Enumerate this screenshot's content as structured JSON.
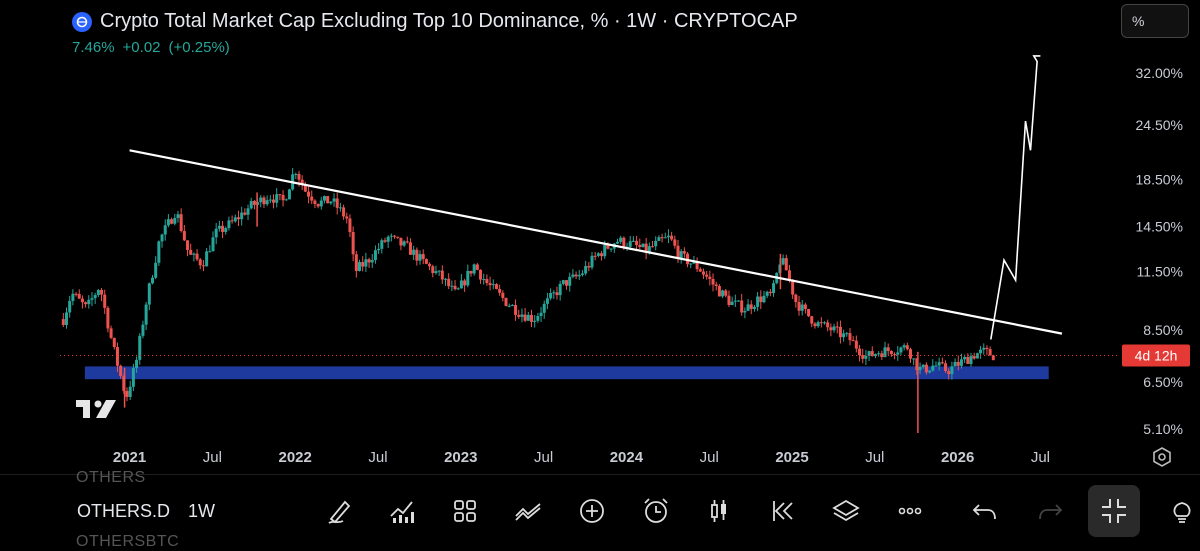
{
  "header": {
    "title": "Crypto Total Market Cap Excluding Top 10 Dominance, % · 1W · CRYPTOCAP",
    "last_value": "7.46%",
    "change_abs": "+0.02",
    "change_pct": "(+0.25%)"
  },
  "unit_label": "%",
  "logo_text": "TV",
  "colors": {
    "background": "#000000",
    "up": "#26a69a",
    "down": "#ef5350",
    "support_zone": "#1e3a9e",
    "trendline": "#ffffff",
    "countdown_badge": "#e53935",
    "axis_text": "#c9ccd4"
  },
  "countdown_label": "4d 12h",
  "toolbar": {
    "ghost_top": "OTHERS",
    "symbol": "OTHERS.D",
    "interval": "1W",
    "ghost_bottom": "OTHERSBTC",
    "icons": [
      "brush-icon",
      "indicators-icon",
      "grid-layout-icon",
      "compare-icon",
      "add-icon",
      "alert-clock-icon",
      "candle-type-icon",
      "replay-icon",
      "layers-icon",
      "more-icon",
      "undo-icon",
      "redo-icon",
      "exit-fullscreen-icon",
      "lightbulb-icon"
    ]
  },
  "chart_data": {
    "type": "candlestick",
    "scale": "log",
    "y_unit": "%",
    "x_labels": [
      "2021",
      "Jul",
      "2022",
      "Jul",
      "2023",
      "Jul",
      "2024",
      "Jul",
      "2025",
      "Jul",
      "2026",
      "Jul"
    ],
    "x_label_bold": [
      "2021",
      "2022",
      "2023",
      "2024",
      "2025",
      "2026"
    ],
    "x_label_dates": [
      2021.0,
      2021.5,
      2022.0,
      2022.5,
      2023.0,
      2023.5,
      2024.0,
      2024.5,
      2025.0,
      2025.5,
      2026.0,
      2026.5
    ],
    "y_ticks": [
      5.1,
      6.5,
      8.5,
      11.5,
      14.5,
      18.5,
      24.5,
      32.0
    ],
    "y_tick_labels": [
      "5.10%",
      "6.50%",
      "8.50%",
      "11.50%",
      "14.50%",
      "18.50%",
      "24.50%",
      "32.00%"
    ],
    "current_price": 7.46,
    "x_range": [
      2020.58,
      2026.92
    ],
    "y_range": [
      4.7,
      40.0
    ],
    "price_path": [
      [
        2020.6,
        9.0
      ],
      [
        2020.65,
        10.3
      ],
      [
        2020.74,
        9.5
      ],
      [
        2020.82,
        10.7
      ],
      [
        2020.9,
        7.8
      ],
      [
        2020.98,
        6.0
      ],
      [
        2021.04,
        7.2
      ],
      [
        2021.1,
        9.8
      ],
      [
        2021.18,
        13.5
      ],
      [
        2021.28,
        15.8
      ],
      [
        2021.36,
        12.5
      ],
      [
        2021.44,
        12.0
      ],
      [
        2021.52,
        14.0
      ],
      [
        2021.62,
        14.8
      ],
      [
        2021.72,
        16.0
      ],
      [
        2021.84,
        17.0
      ],
      [
        2021.93,
        16.5
      ],
      [
        2022.0,
        19.6
      ],
      [
        2022.06,
        17.5
      ],
      [
        2022.14,
        16.4
      ],
      [
        2022.22,
        16.6
      ],
      [
        2022.32,
        15.0
      ],
      [
        2022.36,
        11.5
      ],
      [
        2022.44,
        12.2
      ],
      [
        2022.56,
        13.7
      ],
      [
        2022.68,
        13.0
      ],
      [
        2022.78,
        12.0
      ],
      [
        2022.88,
        11.2
      ],
      [
        2022.97,
        10.2
      ],
      [
        2023.08,
        11.9
      ],
      [
        2023.16,
        10.8
      ],
      [
        2023.28,
        9.8
      ],
      [
        2023.36,
        9.3
      ],
      [
        2023.44,
        9.0
      ],
      [
        2023.52,
        9.8
      ],
      [
        2023.62,
        10.8
      ],
      [
        2023.72,
        11.3
      ],
      [
        2023.82,
        12.5
      ],
      [
        2023.94,
        13.5
      ],
      [
        2024.04,
        13.2
      ],
      [
        2024.12,
        12.8
      ],
      [
        2024.2,
        13.4
      ],
      [
        2024.26,
        13.7
      ],
      [
        2024.32,
        12.5
      ],
      [
        2024.44,
        11.7
      ],
      [
        2024.55,
        10.5
      ],
      [
        2024.63,
        9.8
      ],
      [
        2024.72,
        9.5
      ],
      [
        2024.8,
        10.0
      ],
      [
        2024.88,
        10.2
      ],
      [
        2024.93,
        12.3
      ],
      [
        2024.97,
        11.5
      ],
      [
        2025.02,
        9.9
      ],
      [
        2025.08,
        9.3
      ],
      [
        2025.15,
        8.8
      ],
      [
        2025.25,
        8.5
      ],
      [
        2025.35,
        8.1
      ],
      [
        2025.45,
        7.4
      ],
      [
        2025.52,
        7.6
      ],
      [
        2025.62,
        7.7
      ],
      [
        2025.7,
        7.8
      ],
      [
        2025.74,
        7.2
      ],
      [
        2025.78,
        6.9
      ],
      [
        2025.86,
        7.1
      ],
      [
        2025.94,
        6.9
      ],
      [
        2026.02,
        7.2
      ],
      [
        2026.1,
        7.5
      ],
      [
        2026.16,
        7.6
      ],
      [
        2026.22,
        7.46
      ]
    ],
    "wicks_extreme": [
      {
        "x": 2020.97,
        "low": 5.7,
        "high": 7.0
      },
      {
        "x": 2021.77,
        "low": 14.5,
        "high": 17.3
      },
      {
        "x": 2024.93,
        "low": 10.5,
        "high": 12.6
      },
      {
        "x": 2025.76,
        "low": 5.0,
        "high": 7.6
      }
    ],
    "trendline": {
      "from": [
        2021.0,
        21.5
      ],
      "to": [
        2026.63,
        8.35
      ]
    },
    "support_zone": {
      "x_from": 2020.73,
      "x_to": 2026.55,
      "y_low": 6.6,
      "y_high": 7.05
    },
    "projection_path": [
      [
        2026.2,
        8.1
      ],
      [
        2026.28,
        12.2
      ],
      [
        2026.35,
        11.0
      ],
      [
        2026.41,
        25.0
      ],
      [
        2026.44,
        21.5
      ],
      [
        2026.48,
        34.0
      ],
      [
        2026.46,
        35.0
      ],
      [
        2026.5,
        35.0
      ]
    ]
  }
}
